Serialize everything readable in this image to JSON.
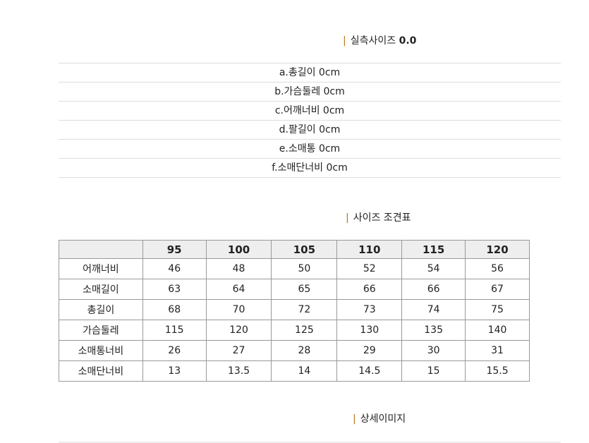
{
  "section1": {
    "title": "실측사이즈",
    "value": "0.0"
  },
  "measurements": [
    "a.총길이 0cm",
    "b.가슴둘레 0cm",
    "c.어깨너비 0cm",
    "d.팔길이 0cm",
    "e.소매통 0cm",
    "f.소매단너비 0cm"
  ],
  "section2": {
    "title": "사이즈 조견표"
  },
  "table": {
    "headers": [
      "",
      "95",
      "100",
      "105",
      "110",
      "115",
      "120"
    ],
    "rows": [
      [
        "어깨너비",
        "46",
        "48",
        "50",
        "52",
        "54",
        "56"
      ],
      [
        "소매길이",
        "63",
        "64",
        "65",
        "66",
        "66",
        "67"
      ],
      [
        "총길이",
        "68",
        "70",
        "72",
        "73",
        "74",
        "75"
      ],
      [
        "가슴둘레",
        "115",
        "120",
        "125",
        "130",
        "135",
        "140"
      ],
      [
        "소매통너비",
        "26",
        "27",
        "28",
        "29",
        "30",
        "31"
      ],
      [
        "소매단너비",
        "13",
        "13.5",
        "14",
        "14.5",
        "15",
        "15.5"
      ]
    ]
  },
  "section3": {
    "title": "상세이미지"
  },
  "colors": {
    "accent_bar": "#b8741a",
    "header_bg": "#eeeeee"
  }
}
